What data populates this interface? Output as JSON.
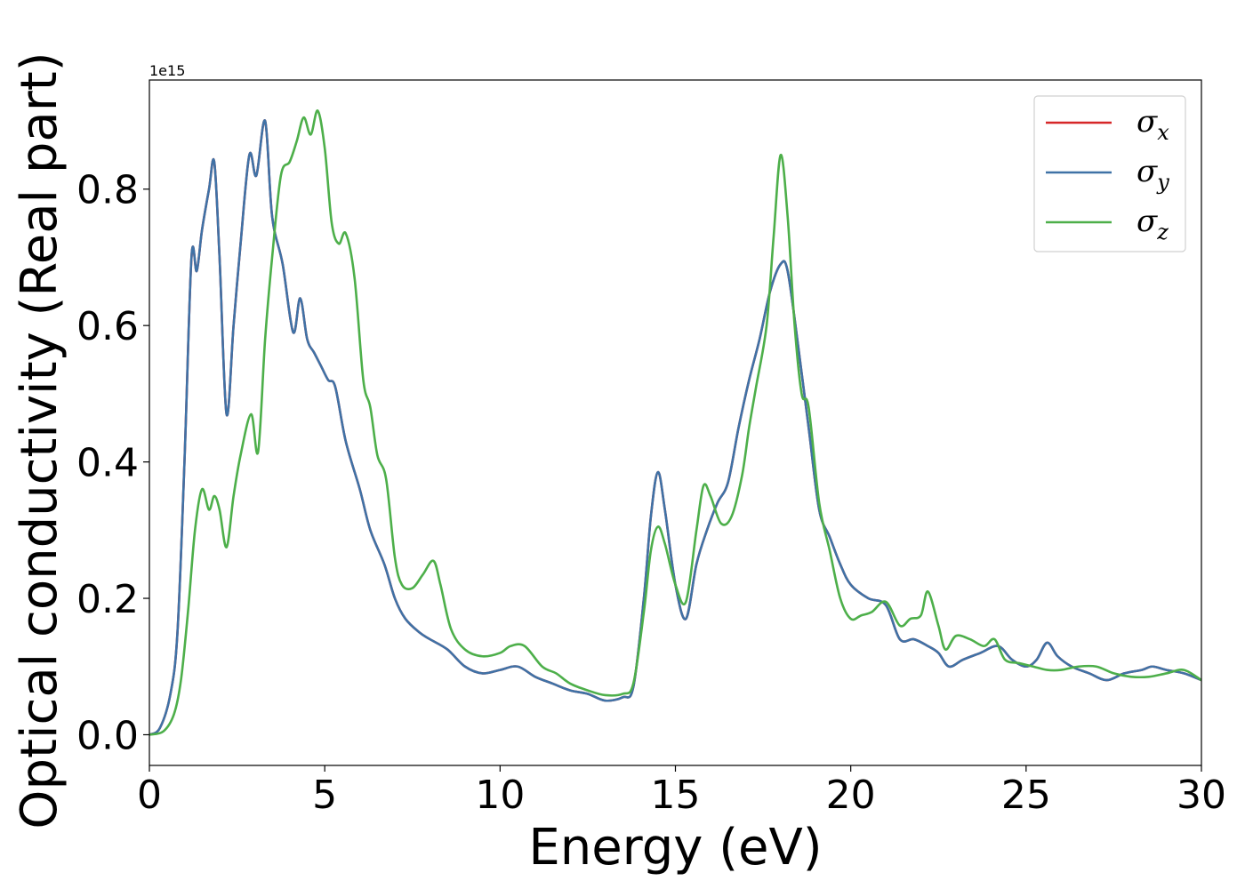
{
  "chart_data": {
    "type": "line",
    "xlabel": "Energy (eV)",
    "ylabel": "Optical conductivity (Real part)",
    "y_offset_text": "1e15",
    "xlim": [
      0,
      30
    ],
    "ylim": [
      -0.045,
      0.96
    ],
    "x_ticks": [
      0,
      5,
      10,
      15,
      20,
      25,
      30
    ],
    "x_tick_labels": [
      "0",
      "5",
      "10",
      "15",
      "20",
      "25",
      "30"
    ],
    "y_ticks": [
      0.0,
      0.2,
      0.4,
      0.6,
      0.8
    ],
    "y_tick_labels": [
      "0.0",
      "0.2",
      "0.4",
      "0.6",
      "0.8"
    ],
    "legend_position": "top-right",
    "legend": [
      {
        "symbol": "σ",
        "subscript": "x"
      },
      {
        "symbol": "σ",
        "subscript": "y"
      },
      {
        "symbol": "σ",
        "subscript": "z"
      }
    ],
    "series": [
      {
        "color": "#d62728",
        "points": [
          [
            0,
            0
          ],
          [
            0.3,
            0.01
          ],
          [
            0.6,
            0.06
          ],
          [
            0.8,
            0.15
          ],
          [
            1.0,
            0.4
          ],
          [
            1.2,
            0.7
          ],
          [
            1.35,
            0.68
          ],
          [
            1.5,
            0.74
          ],
          [
            1.7,
            0.8
          ],
          [
            1.85,
            0.84
          ],
          [
            2.0,
            0.7
          ],
          [
            2.2,
            0.47
          ],
          [
            2.4,
            0.6
          ],
          [
            2.6,
            0.72
          ],
          [
            2.85,
            0.85
          ],
          [
            3.05,
            0.82
          ],
          [
            3.3,
            0.9
          ],
          [
            3.5,
            0.76
          ],
          [
            3.8,
            0.69
          ],
          [
            4.1,
            0.59
          ],
          [
            4.3,
            0.64
          ],
          [
            4.5,
            0.58
          ],
          [
            4.7,
            0.56
          ],
          [
            4.9,
            0.54
          ],
          [
            5.1,
            0.52
          ],
          [
            5.3,
            0.51
          ],
          [
            5.6,
            0.43
          ],
          [
            6.0,
            0.36
          ],
          [
            6.3,
            0.3
          ],
          [
            6.7,
            0.25
          ],
          [
            7.0,
            0.2
          ],
          [
            7.3,
            0.17
          ],
          [
            7.7,
            0.15
          ],
          [
            8.0,
            0.14
          ],
          [
            8.5,
            0.125
          ],
          [
            9.0,
            0.1
          ],
          [
            9.5,
            0.09
          ],
          [
            10.0,
            0.095
          ],
          [
            10.5,
            0.1
          ],
          [
            11.0,
            0.085
          ],
          [
            11.5,
            0.075
          ],
          [
            12.0,
            0.065
          ],
          [
            12.5,
            0.06
          ],
          [
            13.0,
            0.05
          ],
          [
            13.5,
            0.055
          ],
          [
            13.8,
            0.07
          ],
          [
            14.1,
            0.2
          ],
          [
            14.3,
            0.32
          ],
          [
            14.5,
            0.385
          ],
          [
            14.7,
            0.33
          ],
          [
            15.0,
            0.22
          ],
          [
            15.3,
            0.17
          ],
          [
            15.6,
            0.25
          ],
          [
            15.9,
            0.3
          ],
          [
            16.2,
            0.34
          ],
          [
            16.5,
            0.37
          ],
          [
            16.8,
            0.45
          ],
          [
            17.1,
            0.52
          ],
          [
            17.4,
            0.58
          ],
          [
            17.7,
            0.65
          ],
          [
            18.0,
            0.69
          ],
          [
            18.2,
            0.68
          ],
          [
            18.5,
            0.57
          ],
          [
            18.8,
            0.45
          ],
          [
            19.1,
            0.33
          ],
          [
            19.4,
            0.29
          ],
          [
            19.7,
            0.25
          ],
          [
            20.0,
            0.22
          ],
          [
            20.5,
            0.2
          ],
          [
            21.0,
            0.19
          ],
          [
            21.4,
            0.14
          ],
          [
            21.8,
            0.14
          ],
          [
            22.2,
            0.13
          ],
          [
            22.5,
            0.12
          ],
          [
            22.8,
            0.1
          ],
          [
            23.2,
            0.11
          ],
          [
            23.7,
            0.12
          ],
          [
            24.2,
            0.13
          ],
          [
            24.6,
            0.11
          ],
          [
            25.0,
            0.1
          ],
          [
            25.3,
            0.11
          ],
          [
            25.6,
            0.135
          ],
          [
            25.9,
            0.115
          ],
          [
            26.3,
            0.1
          ],
          [
            26.8,
            0.09
          ],
          [
            27.3,
            0.08
          ],
          [
            27.8,
            0.09
          ],
          [
            28.3,
            0.095
          ],
          [
            28.6,
            0.1
          ],
          [
            29.0,
            0.095
          ],
          [
            29.5,
            0.09
          ],
          [
            30.0,
            0.08
          ]
        ]
      },
      {
        "color": "#3f72a6",
        "points": [
          [
            0,
            0
          ],
          [
            0.3,
            0.01
          ],
          [
            0.6,
            0.06
          ],
          [
            0.8,
            0.15
          ],
          [
            1.0,
            0.4
          ],
          [
            1.2,
            0.7
          ],
          [
            1.35,
            0.68
          ],
          [
            1.5,
            0.74
          ],
          [
            1.7,
            0.8
          ],
          [
            1.85,
            0.84
          ],
          [
            2.0,
            0.7
          ],
          [
            2.2,
            0.47
          ],
          [
            2.4,
            0.6
          ],
          [
            2.6,
            0.72
          ],
          [
            2.85,
            0.85
          ],
          [
            3.05,
            0.82
          ],
          [
            3.3,
            0.9
          ],
          [
            3.5,
            0.76
          ],
          [
            3.8,
            0.69
          ],
          [
            4.1,
            0.59
          ],
          [
            4.3,
            0.64
          ],
          [
            4.5,
            0.58
          ],
          [
            4.7,
            0.56
          ],
          [
            4.9,
            0.54
          ],
          [
            5.1,
            0.52
          ],
          [
            5.3,
            0.51
          ],
          [
            5.6,
            0.43
          ],
          [
            6.0,
            0.36
          ],
          [
            6.3,
            0.3
          ],
          [
            6.7,
            0.25
          ],
          [
            7.0,
            0.2
          ],
          [
            7.3,
            0.17
          ],
          [
            7.7,
            0.15
          ],
          [
            8.0,
            0.14
          ],
          [
            8.5,
            0.125
          ],
          [
            9.0,
            0.1
          ],
          [
            9.5,
            0.09
          ],
          [
            10.0,
            0.095
          ],
          [
            10.5,
            0.1
          ],
          [
            11.0,
            0.085
          ],
          [
            11.5,
            0.075
          ],
          [
            12.0,
            0.065
          ],
          [
            12.5,
            0.06
          ],
          [
            13.0,
            0.05
          ],
          [
            13.5,
            0.055
          ],
          [
            13.8,
            0.07
          ],
          [
            14.1,
            0.2
          ],
          [
            14.3,
            0.32
          ],
          [
            14.5,
            0.385
          ],
          [
            14.7,
            0.33
          ],
          [
            15.0,
            0.22
          ],
          [
            15.3,
            0.17
          ],
          [
            15.6,
            0.25
          ],
          [
            15.9,
            0.3
          ],
          [
            16.2,
            0.34
          ],
          [
            16.5,
            0.37
          ],
          [
            16.8,
            0.45
          ],
          [
            17.1,
            0.52
          ],
          [
            17.4,
            0.58
          ],
          [
            17.7,
            0.65
          ],
          [
            18.0,
            0.69
          ],
          [
            18.2,
            0.68
          ],
          [
            18.5,
            0.57
          ],
          [
            18.8,
            0.45
          ],
          [
            19.1,
            0.33
          ],
          [
            19.4,
            0.29
          ],
          [
            19.7,
            0.25
          ],
          [
            20.0,
            0.22
          ],
          [
            20.5,
            0.2
          ],
          [
            21.0,
            0.19
          ],
          [
            21.4,
            0.14
          ],
          [
            21.8,
            0.14
          ],
          [
            22.2,
            0.13
          ],
          [
            22.5,
            0.12
          ],
          [
            22.8,
            0.1
          ],
          [
            23.2,
            0.11
          ],
          [
            23.7,
            0.12
          ],
          [
            24.2,
            0.13
          ],
          [
            24.6,
            0.11
          ],
          [
            25.0,
            0.1
          ],
          [
            25.3,
            0.11
          ],
          [
            25.6,
            0.135
          ],
          [
            25.9,
            0.115
          ],
          [
            26.3,
            0.1
          ],
          [
            26.8,
            0.09
          ],
          [
            27.3,
            0.08
          ],
          [
            27.8,
            0.09
          ],
          [
            28.3,
            0.095
          ],
          [
            28.6,
            0.1
          ],
          [
            29.0,
            0.095
          ],
          [
            29.5,
            0.09
          ],
          [
            30.0,
            0.08
          ]
        ]
      },
      {
        "color": "#4daf4a",
        "points": [
          [
            0,
            0
          ],
          [
            0.4,
            0.005
          ],
          [
            0.7,
            0.03
          ],
          [
            0.9,
            0.08
          ],
          [
            1.1,
            0.18
          ],
          [
            1.3,
            0.3
          ],
          [
            1.5,
            0.36
          ],
          [
            1.7,
            0.33
          ],
          [
            1.85,
            0.35
          ],
          [
            2.0,
            0.33
          ],
          [
            2.2,
            0.275
          ],
          [
            2.4,
            0.35
          ],
          [
            2.6,
            0.41
          ],
          [
            2.9,
            0.47
          ],
          [
            3.1,
            0.415
          ],
          [
            3.3,
            0.58
          ],
          [
            3.5,
            0.7
          ],
          [
            3.75,
            0.82
          ],
          [
            4.0,
            0.84
          ],
          [
            4.2,
            0.87
          ],
          [
            4.4,
            0.905
          ],
          [
            4.6,
            0.88
          ],
          [
            4.8,
            0.915
          ],
          [
            5.0,
            0.86
          ],
          [
            5.2,
            0.75
          ],
          [
            5.4,
            0.72
          ],
          [
            5.6,
            0.735
          ],
          [
            5.85,
            0.67
          ],
          [
            6.1,
            0.52
          ],
          [
            6.3,
            0.48
          ],
          [
            6.5,
            0.41
          ],
          [
            6.75,
            0.375
          ],
          [
            7.0,
            0.26
          ],
          [
            7.2,
            0.22
          ],
          [
            7.5,
            0.215
          ],
          [
            7.8,
            0.235
          ],
          [
            8.1,
            0.255
          ],
          [
            8.3,
            0.22
          ],
          [
            8.6,
            0.155
          ],
          [
            9.0,
            0.125
          ],
          [
            9.5,
            0.115
          ],
          [
            10.0,
            0.12
          ],
          [
            10.3,
            0.13
          ],
          [
            10.7,
            0.13
          ],
          [
            11.2,
            0.1
          ],
          [
            11.6,
            0.09
          ],
          [
            12.0,
            0.075
          ],
          [
            12.5,
            0.065
          ],
          [
            13.0,
            0.058
          ],
          [
            13.5,
            0.06
          ],
          [
            13.8,
            0.075
          ],
          [
            14.1,
            0.18
          ],
          [
            14.3,
            0.27
          ],
          [
            14.5,
            0.305
          ],
          [
            14.7,
            0.28
          ],
          [
            15.0,
            0.22
          ],
          [
            15.3,
            0.195
          ],
          [
            15.6,
            0.3
          ],
          [
            15.8,
            0.365
          ],
          [
            16.0,
            0.35
          ],
          [
            16.3,
            0.31
          ],
          [
            16.6,
            0.32
          ],
          [
            16.9,
            0.38
          ],
          [
            17.1,
            0.45
          ],
          [
            17.3,
            0.51
          ],
          [
            17.6,
            0.6
          ],
          [
            17.8,
            0.73
          ],
          [
            18.0,
            0.85
          ],
          [
            18.2,
            0.76
          ],
          [
            18.4,
            0.6
          ],
          [
            18.6,
            0.5
          ],
          [
            18.8,
            0.48
          ],
          [
            19.1,
            0.34
          ],
          [
            19.4,
            0.27
          ],
          [
            19.7,
            0.2
          ],
          [
            20.0,
            0.17
          ],
          [
            20.3,
            0.175
          ],
          [
            20.6,
            0.18
          ],
          [
            21.0,
            0.195
          ],
          [
            21.4,
            0.16
          ],
          [
            21.7,
            0.17
          ],
          [
            22.0,
            0.175
          ],
          [
            22.2,
            0.21
          ],
          [
            22.5,
            0.16
          ],
          [
            22.7,
            0.125
          ],
          [
            23.0,
            0.145
          ],
          [
            23.4,
            0.14
          ],
          [
            23.8,
            0.13
          ],
          [
            24.1,
            0.14
          ],
          [
            24.4,
            0.11
          ],
          [
            24.8,
            0.105
          ],
          [
            25.2,
            0.1
          ],
          [
            25.6,
            0.095
          ],
          [
            26.0,
            0.095
          ],
          [
            26.5,
            0.1
          ],
          [
            27.0,
            0.1
          ],
          [
            27.5,
            0.09
          ],
          [
            28.0,
            0.085
          ],
          [
            28.5,
            0.085
          ],
          [
            29.0,
            0.09
          ],
          [
            29.5,
            0.095
          ],
          [
            30.0,
            0.08
          ]
        ]
      }
    ]
  }
}
